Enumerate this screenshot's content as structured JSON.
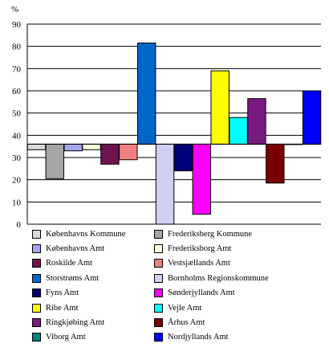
{
  "chart_data": {
    "type": "bar",
    "title": "",
    "ylabel": "%",
    "ylim": [
      0,
      90
    ],
    "yticks": [
      0,
      10,
      20,
      30,
      40,
      50,
      60,
      70,
      80,
      90
    ],
    "baseline": 36,
    "grid": true,
    "legend_position": "bottom",
    "series": [
      {
        "name": "Københavns Kommune",
        "value": 33.5,
        "color": "#d9d9d9"
      },
      {
        "name": "Frederiksberg Kommune",
        "value": 20.5,
        "color": "#a6a6a6"
      },
      {
        "name": "Københavns Amt",
        "value": 33,
        "color": "#a6a6f0"
      },
      {
        "name": "Frederiksborg Amt",
        "value": 33.5,
        "color": "#fffde0"
      },
      {
        "name": "Roskilde Amt",
        "value": 27,
        "color": "#6e1450"
      },
      {
        "name": "Vestsjællands Amt",
        "value": 29,
        "color": "#f08080"
      },
      {
        "name": "Storstrøms Amt",
        "value": 81.5,
        "color": "#0066cc"
      },
      {
        "name": "Bornholms Regionskommune",
        "value": 0,
        "color": "#d0d0f5"
      },
      {
        "name": "Fyns Amt",
        "value": 24,
        "color": "#00007a"
      },
      {
        "name": "Sønderjyllands Amt",
        "value": 4.5,
        "color": "#ff00ff"
      },
      {
        "name": "Ribe Amt",
        "value": 69,
        "color": "#ffff00"
      },
      {
        "name": "Vejle Amt",
        "value": 48,
        "color": "#00ffff"
      },
      {
        "name": "Ringkjøbing Amt",
        "value": 56.5,
        "color": "#7a1a80"
      },
      {
        "name": "Århus Amt",
        "value": 18.5,
        "color": "#7a0000"
      },
      {
        "name": "Viborg Amt",
        "value": 36,
        "color": "#008080"
      },
      {
        "name": "Nordjyllands Amt",
        "value": 60,
        "color": "#0000ff"
      }
    ]
  }
}
